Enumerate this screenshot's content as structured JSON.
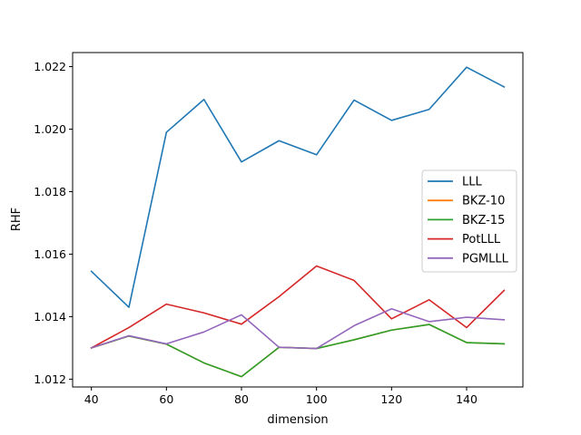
{
  "chart_data": {
    "type": "line",
    "title": "",
    "xlabel": "dimension",
    "ylabel": "RHF",
    "xlim": [
      35,
      155
    ],
    "ylim": [
      1.01175,
      1.02245
    ],
    "xticks": [
      40,
      60,
      80,
      100,
      120,
      140
    ],
    "xtick_labels": [
      "40",
      "60",
      "80",
      "100",
      "120",
      "140"
    ],
    "yticks": [
      1.012,
      1.014,
      1.016,
      1.018,
      1.02,
      1.022
    ],
    "ytick_labels": [
      "1.012",
      "1.014",
      "1.016",
      "1.018",
      "1.020",
      "1.022"
    ],
    "grid": false,
    "legend_position": "center-right",
    "x": [
      40,
      50,
      60,
      70,
      80,
      90,
      100,
      110,
      120,
      130,
      140,
      150
    ],
    "series": [
      {
        "name": "LLL",
        "color": "#1f77b4",
        "values": [
          1.01545,
          1.0143,
          1.0199,
          1.02095,
          1.01895,
          1.01963,
          1.01918,
          1.02093,
          1.02028,
          1.02063,
          1.02198,
          1.02135
        ]
      },
      {
        "name": "BKZ-10",
        "color": "#ff7f0e",
        "values": [
          1.013,
          1.01338,
          1.01312,
          1.01252,
          1.01208,
          1.01302,
          1.01298,
          1.01326,
          1.01357,
          1.01375,
          1.01317,
          1.01313
        ]
      },
      {
        "name": "BKZ-15",
        "color": "#2ca02c",
        "values": [
          1.013,
          1.01338,
          1.01312,
          1.01252,
          1.01208,
          1.01302,
          1.01298,
          1.01326,
          1.01357,
          1.01375,
          1.01317,
          1.01313
        ]
      },
      {
        "name": "PotLLL",
        "color": "#d62728",
        "values": [
          1.013,
          1.01365,
          1.0144,
          1.01412,
          1.01376,
          1.01464,
          1.01562,
          1.01516,
          1.01393,
          1.01454,
          1.01365,
          1.01484
        ]
      },
      {
        "name": "PGMLLL",
        "color": "#9467bd",
        "values": [
          1.013,
          1.01339,
          1.01313,
          1.01351,
          1.01406,
          1.01302,
          1.01298,
          1.01371,
          1.01425,
          1.01384,
          1.01398,
          1.0139
        ]
      }
    ]
  }
}
